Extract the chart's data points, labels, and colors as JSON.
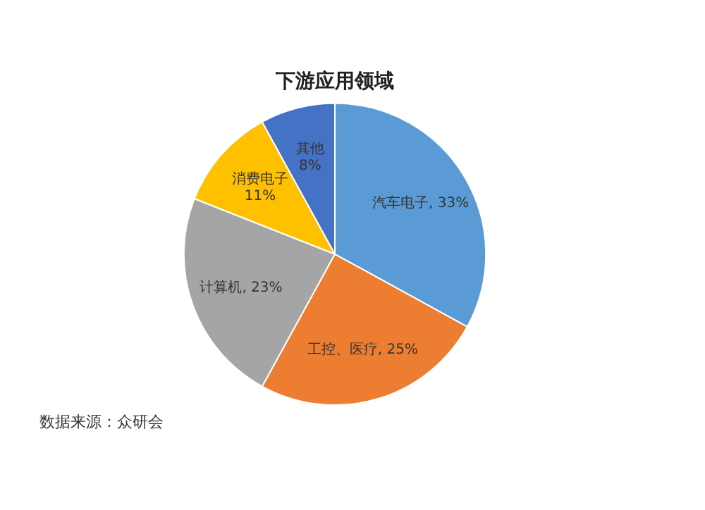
{
  "chart_data": {
    "type": "pie",
    "title": "下游应用领域",
    "categories": [
      "汽车电子",
      "工控、医疗",
      "计算机",
      "消费电子",
      "其他"
    ],
    "values": [
      33,
      25,
      23,
      11,
      8
    ],
    "value_labels": [
      "33%",
      "25%",
      "23%",
      "11%",
      "8%"
    ],
    "colors": [
      "#5b9bd5",
      "#ed7d31",
      "#a5a5a5",
      "#ffc000",
      "#4472c4"
    ],
    "annotations": [
      "数据来源：众研会"
    ],
    "legend": false
  }
}
